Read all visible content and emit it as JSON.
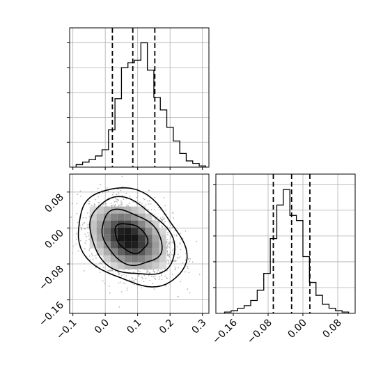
{
  "chart_data": {
    "type": "corner",
    "title": "",
    "parameters": [
      {
        "label": ""
      },
      {
        "label": ""
      }
    ],
    "quantiles": {
      "x": [
        0.022,
        0.085,
        0.153
      ],
      "y": [
        -0.068,
        -0.026,
        0.016
      ]
    },
    "hist_x": {
      "xlim": [
        -0.11,
        0.32
      ],
      "bin_edges": [
        -0.09,
        -0.07,
        -0.05,
        -0.03,
        -0.01,
        0.01,
        0.03,
        0.05,
        0.07,
        0.09,
        0.11,
        0.13,
        0.15,
        0.17,
        0.19,
        0.21,
        0.23,
        0.25,
        0.27,
        0.29,
        0.31
      ],
      "counts": [
        0.02,
        0.04,
        0.06,
        0.09,
        0.14,
        0.3,
        0.55,
        0.8,
        0.84,
        0.86,
        1.0,
        0.78,
        0.56,
        0.46,
        0.32,
        0.21,
        0.11,
        0.05,
        0.03,
        0.01
      ],
      "y_ticks": [
        0.2,
        0.4,
        0.6,
        0.8,
        1.0
      ]
    },
    "hist_y": {
      "xlim": [
        -0.2,
        0.12
      ],
      "bin_edges": [
        -0.18,
        -0.165,
        -0.15,
        -0.135,
        -0.12,
        -0.105,
        -0.09,
        -0.075,
        -0.06,
        -0.045,
        -0.03,
        -0.015,
        0.0,
        0.015,
        0.03,
        0.045,
        0.06,
        0.075,
        0.09,
        0.105
      ],
      "counts": [
        0.01,
        0.02,
        0.04,
        0.06,
        0.1,
        0.18,
        0.31,
        0.58,
        0.84,
        0.96,
        0.76,
        0.72,
        0.44,
        0.24,
        0.14,
        0.07,
        0.04,
        0.02,
        0.01
      ],
      "y_ticks": [
        0.2,
        0.4,
        0.6,
        0.8,
        1.0
      ]
    },
    "scatter_2d": {
      "xlim": [
        -0.11,
        0.32
      ],
      "ylim": [
        -0.19,
        0.12
      ],
      "center": [
        0.08,
        -0.022
      ],
      "samples": 2200,
      "density_peak": [
        0.07,
        -0.022
      ]
    },
    "x_ticks": [
      "-0.1",
      "0.0",
      "0.1",
      "0.2",
      "0.3"
    ],
    "x_tick_values": [
      -0.1,
      0.0,
      0.1,
      0.2,
      0.3
    ],
    "y_ticks": [
      "-0.16",
      "-0.08",
      "0.00",
      "0.08"
    ],
    "y_tick_values": [
      -0.16,
      -0.08,
      0.0,
      0.08
    ],
    "grid": true
  }
}
